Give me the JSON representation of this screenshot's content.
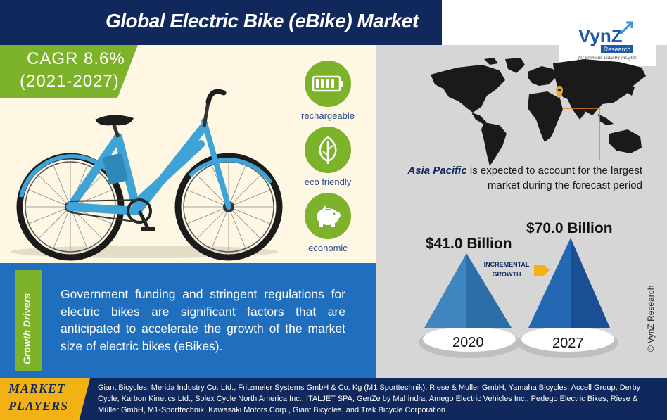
{
  "title": "Global Electric Bike (eBike) Market",
  "cagr": {
    "line1": "CAGR 8.6%",
    "line2": "(2021-2027)"
  },
  "features": [
    {
      "icon": "battery-icon",
      "label": "rechargeable"
    },
    {
      "icon": "leaf-icon",
      "label": "eco friendly"
    },
    {
      "icon": "piggy-bank-icon",
      "label": "economic"
    }
  ],
  "logo": {
    "name": "VynZ",
    "sub": "Research",
    "tagline": "for premium industry insights"
  },
  "region": {
    "highlight": "Asia Pacific",
    "text_line1": " is expected  to account for the largest",
    "text_line2": "market during the forecast period"
  },
  "market_values": {
    "start": {
      "value": "$41.0 Billion",
      "year": "2020"
    },
    "end": {
      "value": "$70.0 Billion",
      "year": "2027"
    },
    "incremental_line1": "INCREMENTAL",
    "incremental_line2": "GROWTH"
  },
  "copyright": "© VynZ Research",
  "growth_drivers": {
    "label": "Growth Drivers",
    "text": "Government funding and stringent regulations for electric bikes are significant factors that are anticipated to accelerate the growth of the market size of electric bikes (eBikes)."
  },
  "market_players": {
    "label_line1": "MARKET",
    "label_line2": "PLAYERS",
    "text": "Giant Bicycles, Merida Industry Co. Ltd.,  Fritzmeier Systems GmbH & Co. Kg (M1 Sporttechnik), Riese & Muller GmbH,  Yamaha Bicycles, Accell Group, Derby Cycle, Karbon Kinetics Ltd., Solex Cycle North America Inc., ITALJET SPA, GenZe by Mahindra, Amego Electric Vehicles Inc., Pedego Electric Bikes, Riese & Müller GmbH,  M1-Sporttechnik, Kawasaki Motors Corp., Giant Bicycles, and Trek Bicycle Corporation"
  },
  "colors": {
    "navy": "#11285c",
    "green": "#7cb32b",
    "blue": "#1f6fbe",
    "gold": "#f2b214",
    "cream": "#fdf7e3",
    "grey": "#d6d6d6"
  }
}
